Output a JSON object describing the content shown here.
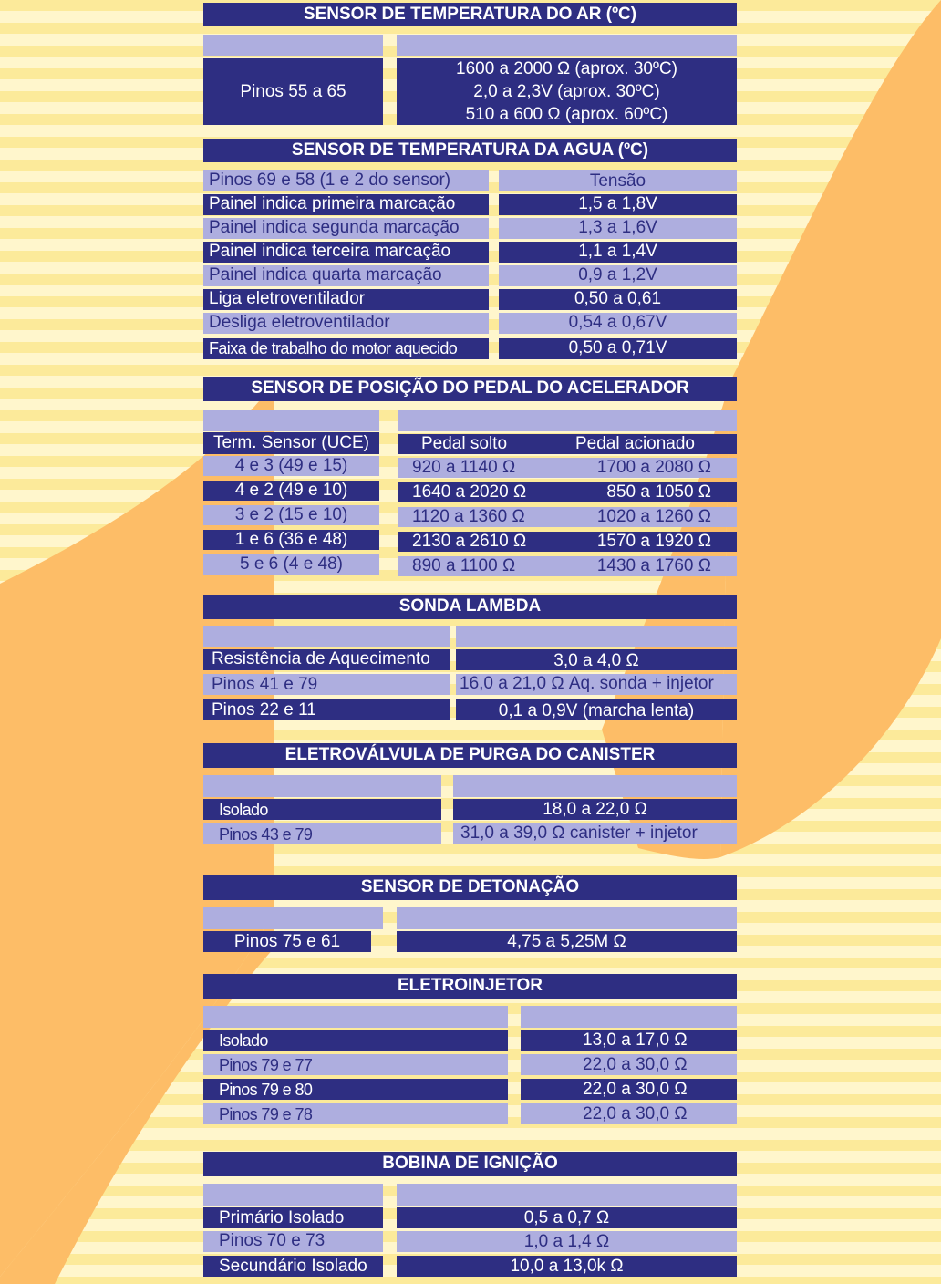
{
  "sections": [
    {
      "title": "SENSOR DE TEMPERATURA DO  AR (ºC)",
      "pins_label": "Pinos 55 a 65",
      "values": [
        "1600 a 2000 Ω  (aprox. 30ºC)",
        "2,0 a 2,3V (aprox. 30ºC)",
        "510 a 600 Ω    (aprox. 60ºC)"
      ]
    },
    {
      "title": "SENSOR DE TEMPERATURA DA  AGUA (ºC)",
      "header_left": "Pinos 69 e 58 (1 e 2 do sensor)",
      "header_right": "Tensão",
      "rows": [
        {
          "label": "Painel indica  primeira marcação",
          "value": "1,5 a 1,8V"
        },
        {
          "label": "Painel indica segunda marcação",
          "value": "1,3 a 1,6V"
        },
        {
          "label": "Painel indica terceira marcação",
          "value": "1,1 a 1,4V"
        },
        {
          "label": "Painel indica quarta marcação",
          "value": "0,9 a 1,2V"
        },
        {
          "label": "Liga eletroventilador",
          "value": "0,50 a 0,61"
        },
        {
          "label": "Desliga eletroventilador",
          "value": "0,54 a 0,67V"
        },
        {
          "label": "Faixa de trabalho do motor aquecido",
          "value": "0,50 a 0,71V"
        }
      ]
    },
    {
      "title": "SENSOR DE POSIÇÃO DO PEDAL DO ACELERADOR",
      "col_headers": [
        "Term. Sensor (UCE)",
        "Pedal solto",
        "Pedal acionado"
      ],
      "rows": [
        {
          "label": "4 e 3 (49 e 15)",
          "v1": "920 a 1140  Ω",
          "v2": "1700 a 2080 Ω"
        },
        {
          "label": "4 e 2 (49 e 10)",
          "v1": "1640 a 2020 Ω",
          "v2": "850 a 1050 Ω"
        },
        {
          "label": "3 e 2 (15 e 10)",
          "v1": "1120 a 1360 Ω",
          "v2": "1020 a 1260 Ω"
        },
        {
          "label": "1 e 6 (36 e 48)",
          "v1": "2130 a 2610 Ω",
          "v2": "1570 a 1920 Ω"
        },
        {
          "label": "5 e 6 (4 e 48)",
          "v1": "890 a 1100  Ω",
          "v2": "1430 a 1760 Ω"
        }
      ]
    },
    {
      "title": "SONDA LAMBDA",
      "rows": [
        {
          "label": "Resistência de Aquecimento",
          "value": "3,0 a 4,0 Ω"
        },
        {
          "label": "Pinos 41 e 79",
          "value": "16,0 a 21,0 Ω  Aq. sonda + injetor"
        },
        {
          "label": "Pinos 22 e 11",
          "value": "0,1 a 0,9V (marcha lenta)"
        }
      ]
    },
    {
      "title": "ELETROVÁLVULA DE PURGA DO CANISTER",
      "rows": [
        {
          "label": "Isolado",
          "value": "18,0 a 22,0 Ω"
        },
        {
          "label": "Pinos 43 e 79",
          "value": "31,0 a 39,0 Ω    canister + injetor"
        }
      ]
    },
    {
      "title": "SENSOR DE DETONAÇÃO",
      "rows": [
        {
          "label": "Pinos 75 e 61",
          "value": "4,75 a 5,25M  Ω"
        }
      ]
    },
    {
      "title": "ELETROINJETOR",
      "rows": [
        {
          "label": "Isolado",
          "value": "13,0 a 17,0 Ω"
        },
        {
          "label": "Pinos 79 e 77",
          "value": "22,0 a 30,0 Ω"
        },
        {
          "label": "Pinos 79 e 80",
          "value": "22,0 a 30,0 Ω"
        },
        {
          "label": "Pinos 79 e 78",
          "value": "22,0 a 30,0 Ω"
        }
      ]
    },
    {
      "title": "BOBINA DE IGNIÇÃO",
      "rows": [
        {
          "label": "Primário Isolado",
          "value": "0,5 a 0,7 Ω"
        },
        {
          "label": "Pinos 70 e 73",
          "value": "1,0 a 1,4 Ω"
        },
        {
          "label": "Secundário Isolado",
          "value": "10,0 a 13,0k Ω"
        }
      ]
    }
  ],
  "colors": {
    "dark_row": "#2E2E82",
    "light_row": "#AEAEDF",
    "stripe_yellow": "#FCEA9A",
    "stripe_cream": "#FFF6CC",
    "orange_shape": "#FDBD67"
  }
}
